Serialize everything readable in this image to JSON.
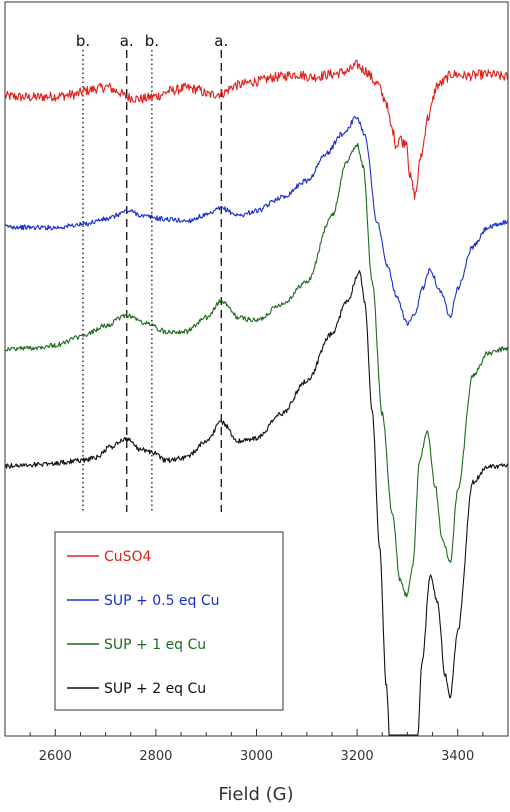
{
  "chart_data": {
    "type": "line",
    "xlabel": "Field (G)",
    "ylabel": "",
    "xlim": [
      2500,
      3500
    ],
    "x_ticks": [
      "2600",
      "2800",
      "3000",
      "3200",
      "3400"
    ],
    "grid": false,
    "y_axis_visible": false,
    "legend_position": "bottom-left",
    "markers": [
      {
        "label": "b.",
        "x": 2655,
        "style": "dotted"
      },
      {
        "label": "a.",
        "x": 2742,
        "style": "dashed"
      },
      {
        "label": "b.",
        "x": 2792,
        "style": "dotted"
      },
      {
        "label": "a.",
        "x": 2930,
        "style": "dashed"
      }
    ],
    "series": [
      {
        "name": "CuSO4",
        "color": "#e0201b",
        "x": [
          2500,
          2550,
          2600,
          2640,
          2660,
          2690,
          2705,
          2720,
          2745,
          2770,
          2800,
          2830,
          2860,
          2880,
          2905,
          2930,
          2960,
          3000,
          3040,
          3080,
          3110,
          3150,
          3180,
          3200,
          3215,
          3240,
          3255,
          3270,
          3278,
          3285,
          3292,
          3298,
          3305,
          3315,
          3328,
          3340,
          3360,
          3390,
          3420,
          3460,
          3500
        ],
        "y": [
          -0.15,
          -0.17,
          -0.15,
          -0.12,
          -0.05,
          0.0,
          0.02,
          -0.05,
          -0.17,
          -0.2,
          -0.15,
          -0.05,
          0.0,
          -0.02,
          -0.12,
          -0.1,
          0.05,
          0.12,
          0.2,
          0.25,
          0.2,
          0.25,
          0.3,
          0.42,
          0.32,
          0.08,
          -0.2,
          -0.75,
          -1.05,
          -0.9,
          -1.0,
          -0.95,
          -1.6,
          -1.95,
          -1.2,
          -0.55,
          0.05,
          0.25,
          0.22,
          0.25,
          0.2
        ]
      },
      {
        "name": "SUP + 0.5 eq Cu",
        "color": "#1a2fcc",
        "x": [
          2500,
          2550,
          2600,
          2650,
          2700,
          2745,
          2780,
          2820,
          2860,
          2900,
          2930,
          2965,
          3000,
          3050,
          3100,
          3140,
          3170,
          3200,
          3215,
          3240,
          3260,
          3280,
          3300,
          3315,
          3330,
          3345,
          3365,
          3385,
          3400,
          3430,
          3460,
          3500
        ],
        "y": [
          -0.08,
          -0.1,
          -0.1,
          -0.05,
          0.05,
          0.2,
          0.1,
          0.05,
          0.02,
          0.12,
          0.25,
          0.12,
          0.2,
          0.45,
          0.75,
          1.25,
          1.6,
          1.9,
          1.6,
          0.0,
          -0.8,
          -1.4,
          -1.85,
          -1.7,
          -1.2,
          -0.85,
          -1.25,
          -1.7,
          -1.2,
          -0.45,
          -0.1,
          0.0
        ]
      },
      {
        "name": "SUP + 1 eq Cu",
        "color": "#1e6b1e",
        "x": [
          2500,
          2550,
          2600,
          2650,
          2700,
          2742,
          2780,
          2820,
          2860,
          2900,
          2930,
          2965,
          3000,
          3050,
          3100,
          3150,
          3180,
          3200,
          3212,
          3230,
          3250,
          3270,
          3285,
          3298,
          3310,
          3325,
          3340,
          3355,
          3370,
          3385,
          3400,
          3430,
          3460,
          3500
        ],
        "y": [
          -0.02,
          0.0,
          0.05,
          0.2,
          0.4,
          0.6,
          0.45,
          0.3,
          0.3,
          0.55,
          0.85,
          0.55,
          0.5,
          0.8,
          1.2,
          2.4,
          3.4,
          3.7,
          3.3,
          1.2,
          -1.2,
          -3.0,
          -4.2,
          -4.5,
          -4.0,
          -2.0,
          -1.5,
          -2.5,
          -3.5,
          -3.9,
          -2.6,
          -0.5,
          -0.1,
          0.0
        ]
      },
      {
        "name": "SUP + 2 eq Cu",
        "color": "#111111",
        "x": [
          2500,
          2550,
          2600,
          2650,
          2680,
          2710,
          2742,
          2770,
          2792,
          2820,
          2860,
          2900,
          2930,
          2965,
          3000,
          3050,
          3100,
          3150,
          3180,
          3205,
          3215,
          3230,
          3245,
          3258,
          3270,
          3285,
          3300,
          3315,
          3330,
          3345,
          3360,
          3375,
          3385,
          3400,
          3430,
          3460,
          3500
        ],
        "y": [
          0.0,
          0.02,
          0.05,
          0.1,
          0.15,
          0.35,
          0.5,
          0.3,
          0.25,
          0.1,
          0.15,
          0.45,
          0.8,
          0.45,
          0.5,
          0.95,
          1.55,
          2.4,
          3.0,
          3.55,
          3.0,
          1.0,
          -1.5,
          -4.0,
          -6.0,
          -7.0,
          -7.5,
          -6.0,
          -3.5,
          -2.0,
          -2.5,
          -3.8,
          -4.2,
          -3.0,
          -0.3,
          0.0,
          0.0
        ]
      }
    ]
  }
}
